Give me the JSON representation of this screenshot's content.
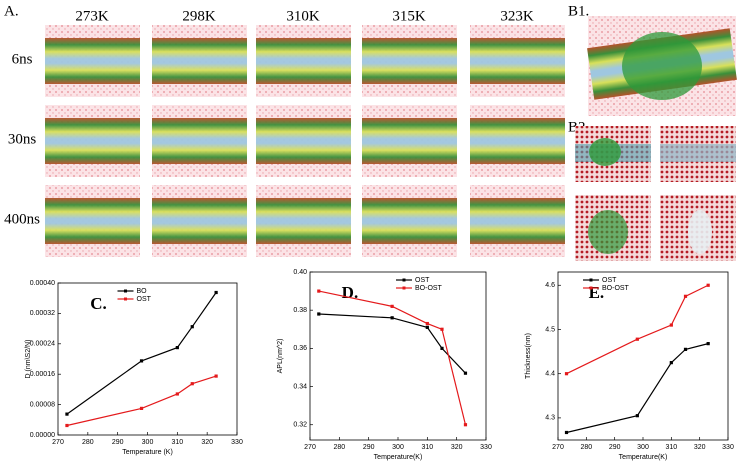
{
  "figure": {
    "panel_a": {
      "label": "A.",
      "columns": [
        "273K",
        "298K",
        "310K",
        "315K",
        "323K"
      ],
      "rows": [
        "6ns",
        "30ns",
        "400ns"
      ]
    },
    "panel_b1": {
      "label": "B1."
    },
    "panel_b2": {
      "label": "B2."
    }
  },
  "chart_data": [
    {
      "type": "line",
      "title": "C.",
      "x_label": "Temperature (K)",
      "y_label": "D (nm\\S2/N)",
      "x": [
        273,
        298,
        310,
        315,
        323
      ],
      "series": [
        {
          "name": "BO",
          "color": "#000000",
          "values": [
            5.5e-05,
            0.000195,
            0.00023,
            0.000285,
            0.000375
          ]
        },
        {
          "name": "OST",
          "color": "#e41a1c",
          "values": [
            2.5e-05,
            7e-05,
            0.000108,
            0.000135,
            0.000155
          ]
        }
      ],
      "xlim": [
        270,
        330
      ],
      "xticks": [
        270,
        280,
        290,
        300,
        310,
        320,
        330
      ],
      "ylim": [
        0,
        0.0004
      ],
      "yticks": [
        {
          "value": 0,
          "label": "0.00000"
        },
        8e-05,
        0.00016,
        0.00024,
        0.00032,
        {
          "value": 0.0004,
          "label": "0.00040"
        }
      ],
      "legend": "upper center"
    },
    {
      "type": "line",
      "title": "D.",
      "x_label": "Temperature(K)",
      "y_label": "APL(nm^2)",
      "x": [
        273,
        298,
        310,
        315,
        323
      ],
      "series": [
        {
          "name": "OST",
          "color": "#000000",
          "values": [
            0.378,
            0.376,
            0.371,
            0.36,
            0.347
          ]
        },
        {
          "name": "BO-OST",
          "color": "#e41a1c",
          "values": [
            0.39,
            0.382,
            0.373,
            0.37,
            0.32
          ]
        }
      ],
      "xlim": [
        270,
        330
      ],
      "xticks": [
        270,
        280,
        290,
        300,
        310,
        320,
        330
      ],
      "ylim": [
        0.312,
        0.4
      ],
      "yticks": [
        0.32,
        0.34,
        0.36,
        0.38,
        {
          "value": 0.4,
          "label": "0.40"
        }
      ],
      "legend": "upper right"
    },
    {
      "type": "line",
      "title": "E.",
      "x_label": "Temperature(K)",
      "y_label": "Thickness(nm)",
      "x": [
        273,
        298,
        310,
        315,
        323
      ],
      "series": [
        {
          "name": "OST",
          "color": "#000000",
          "values": [
            4.267,
            4.305,
            4.425,
            4.455,
            4.468
          ]
        },
        {
          "name": "BO-OST",
          "color": "#e41a1c",
          "values": [
            4.4,
            4.478,
            4.51,
            4.575,
            4.6
          ]
        }
      ],
      "xlim": [
        270,
        330
      ],
      "xticks": [
        270,
        280,
        290,
        300,
        310,
        320,
        330
      ],
      "ylim": [
        4.25,
        4.63
      ],
      "yticks": [
        4.3,
        4.4,
        4.5,
        4.6
      ],
      "legend": "upper left"
    }
  ]
}
